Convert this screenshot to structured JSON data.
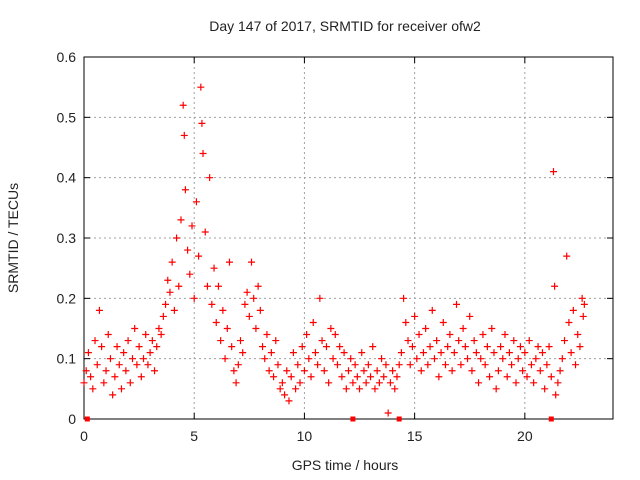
{
  "chart_data": {
    "type": "scatter",
    "title": "Day 147 of 2017, SRMTID for receiver ofw2",
    "xlabel": "GPS time / hours",
    "ylabel": "SRMTID / TECUs",
    "xlim": [
      0,
      24
    ],
    "ylim": [
      0,
      0.6
    ],
    "x_ticks": [
      0,
      5,
      10,
      15,
      20
    ],
    "y_ticks": [
      0,
      0.1,
      0.2,
      0.3,
      0.4,
      0.5,
      0.6
    ],
    "x_tick_labels": [
      "0",
      "5",
      "10",
      "15",
      "20"
    ],
    "y_tick_labels": [
      "0",
      "0.1",
      "0.2",
      "0.3",
      "0.4",
      "0.5",
      "0.6"
    ],
    "grid": true,
    "marker": "+",
    "color": "#ff0000",
    "series": [
      {
        "name": "SRMTID",
        "points": [
          [
            0.0,
            0.06
          ],
          [
            0.1,
            0.08
          ],
          [
            0.2,
            0.11
          ],
          [
            0.3,
            0.07
          ],
          [
            0.4,
            0.05
          ],
          [
            0.5,
            0.13
          ],
          [
            0.6,
            0.09
          ],
          [
            0.7,
            0.18
          ],
          [
            0.8,
            0.12
          ],
          [
            0.9,
            0.06
          ],
          [
            1.0,
            0.08
          ],
          [
            1.1,
            0.14
          ],
          [
            1.2,
            0.1
          ],
          [
            1.3,
            0.04
          ],
          [
            1.4,
            0.07
          ],
          [
            1.5,
            0.12
          ],
          [
            1.6,
            0.09
          ],
          [
            1.7,
            0.05
          ],
          [
            1.8,
            0.11
          ],
          [
            1.9,
            0.08
          ],
          [
            2.0,
            0.13
          ],
          [
            2.1,
            0.06
          ],
          [
            2.2,
            0.1
          ],
          [
            2.3,
            0.15
          ],
          [
            2.4,
            0.09
          ],
          [
            2.5,
            0.12
          ],
          [
            2.6,
            0.07
          ],
          [
            2.7,
            0.1
          ],
          [
            2.8,
            0.14
          ],
          [
            2.9,
            0.09
          ],
          [
            3.0,
            0.11
          ],
          [
            3.1,
            0.13
          ],
          [
            3.2,
            0.08
          ],
          [
            3.3,
            0.12
          ],
          [
            3.4,
            0.15
          ],
          [
            3.5,
            0.14
          ],
          [
            3.6,
            0.17
          ],
          [
            3.7,
            0.19
          ],
          [
            3.8,
            0.23
          ],
          [
            3.9,
            0.21
          ],
          [
            4.0,
            0.26
          ],
          [
            4.1,
            0.18
          ],
          [
            4.2,
            0.3
          ],
          [
            4.3,
            0.22
          ],
          [
            4.4,
            0.33
          ],
          [
            4.5,
            0.52
          ],
          [
            4.55,
            0.47
          ],
          [
            4.6,
            0.38
          ],
          [
            4.7,
            0.28
          ],
          [
            4.8,
            0.24
          ],
          [
            4.9,
            0.32
          ],
          [
            5.0,
            0.2
          ],
          [
            5.1,
            0.36
          ],
          [
            5.2,
            0.27
          ],
          [
            5.3,
            0.55
          ],
          [
            5.35,
            0.49
          ],
          [
            5.4,
            0.44
          ],
          [
            5.5,
            0.31
          ],
          [
            5.6,
            0.22
          ],
          [
            5.7,
            0.4
          ],
          [
            5.8,
            0.19
          ],
          [
            5.9,
            0.25
          ],
          [
            6.0,
            0.16
          ],
          [
            6.1,
            0.22
          ],
          [
            6.2,
            0.13
          ],
          [
            6.3,
            0.18
          ],
          [
            6.4,
            0.1
          ],
          [
            6.5,
            0.15
          ],
          [
            6.6,
            0.26
          ],
          [
            6.7,
            0.12
          ],
          [
            6.8,
            0.08
          ],
          [
            6.9,
            0.06
          ],
          [
            7.0,
            0.09
          ],
          [
            7.1,
            0.13
          ],
          [
            7.2,
            0.11
          ],
          [
            7.3,
            0.19
          ],
          [
            7.4,
            0.21
          ],
          [
            7.5,
            0.17
          ],
          [
            7.6,
            0.26
          ],
          [
            7.7,
            0.2
          ],
          [
            7.8,
            0.15
          ],
          [
            7.9,
            0.22
          ],
          [
            8.0,
            0.18
          ],
          [
            8.1,
            0.12
          ],
          [
            8.2,
            0.1
          ],
          [
            8.3,
            0.14
          ],
          [
            8.4,
            0.08
          ],
          [
            8.5,
            0.11
          ],
          [
            8.6,
            0.07
          ],
          [
            8.7,
            0.13
          ],
          [
            8.8,
            0.09
          ],
          [
            8.9,
            0.05
          ],
          [
            9.0,
            0.06
          ],
          [
            9.1,
            0.04
          ],
          [
            9.2,
            0.08
          ],
          [
            9.3,
            0.03
          ],
          [
            9.4,
            0.07
          ],
          [
            9.5,
            0.11
          ],
          [
            9.6,
            0.05
          ],
          [
            9.7,
            0.09
          ],
          [
            9.8,
            0.06
          ],
          [
            9.9,
            0.12
          ],
          [
            10.0,
            0.08
          ],
          [
            10.1,
            0.14
          ],
          [
            10.2,
            0.1
          ],
          [
            10.3,
            0.07
          ],
          [
            10.4,
            0.16
          ],
          [
            10.5,
            0.11
          ],
          [
            10.6,
            0.09
          ],
          [
            10.7,
            0.2
          ],
          [
            10.8,
            0.13
          ],
          [
            10.9,
            0.08
          ],
          [
            11.0,
            0.12
          ],
          [
            11.1,
            0.06
          ],
          [
            11.2,
            0.15
          ],
          [
            11.3,
            0.1
          ],
          [
            11.4,
            0.14
          ],
          [
            11.5,
            0.09
          ],
          [
            11.6,
            0.12
          ],
          [
            11.7,
            0.07
          ],
          [
            11.8,
            0.11
          ],
          [
            11.9,
            0.05
          ],
          [
            12.0,
            0.08
          ],
          [
            12.1,
            0.1
          ],
          [
            12.2,
            0.06
          ],
          [
            12.3,
            0.09
          ],
          [
            12.4,
            0.07
          ],
          [
            12.5,
            0.05
          ],
          [
            12.6,
            0.11
          ],
          [
            12.7,
            0.08
          ],
          [
            12.8,
            0.06
          ],
          [
            12.9,
            0.09
          ],
          [
            13.0,
            0.07
          ],
          [
            13.1,
            0.12
          ],
          [
            13.2,
            0.05
          ],
          [
            13.3,
            0.08
          ],
          [
            13.4,
            0.06
          ],
          [
            13.5,
            0.1
          ],
          [
            13.6,
            0.07
          ],
          [
            13.7,
            0.09
          ],
          [
            13.8,
            0.01
          ],
          [
            13.9,
            0.06
          ],
          [
            14.0,
            0.08
          ],
          [
            14.1,
            0.05
          ],
          [
            14.2,
            0.07
          ],
          [
            14.3,
            0.09
          ],
          [
            14.4,
            0.11
          ],
          [
            14.5,
            0.2
          ],
          [
            14.6,
            0.16
          ],
          [
            14.7,
            0.13
          ],
          [
            14.8,
            0.09
          ],
          [
            14.9,
            0.12
          ],
          [
            15.0,
            0.17
          ],
          [
            15.1,
            0.1
          ],
          [
            15.2,
            0.14
          ],
          [
            15.3,
            0.08
          ],
          [
            15.4,
            0.11
          ],
          [
            15.5,
            0.15
          ],
          [
            15.6,
            0.09
          ],
          [
            15.7,
            0.12
          ],
          [
            15.8,
            0.18
          ],
          [
            15.9,
            0.1
          ],
          [
            16.0,
            0.13
          ],
          [
            16.1,
            0.07
          ],
          [
            16.2,
            0.11
          ],
          [
            16.3,
            0.16
          ],
          [
            16.4,
            0.09
          ],
          [
            16.5,
            0.12
          ],
          [
            16.6,
            0.14
          ],
          [
            16.7,
            0.08
          ],
          [
            16.8,
            0.11
          ],
          [
            16.9,
            0.19
          ],
          [
            17.0,
            0.13
          ],
          [
            17.1,
            0.09
          ],
          [
            17.2,
            0.15
          ],
          [
            17.3,
            0.12
          ],
          [
            17.4,
            0.1
          ],
          [
            17.5,
            0.17
          ],
          [
            17.6,
            0.08
          ],
          [
            17.7,
            0.13
          ],
          [
            17.8,
            0.11
          ],
          [
            17.9,
            0.06
          ],
          [
            18.0,
            0.1
          ],
          [
            18.1,
            0.14
          ],
          [
            18.2,
            0.09
          ],
          [
            18.3,
            0.12
          ],
          [
            18.4,
            0.07
          ],
          [
            18.5,
            0.15
          ],
          [
            18.6,
            0.11
          ],
          [
            18.7,
            0.05
          ],
          [
            18.8,
            0.08
          ],
          [
            18.9,
            0.12
          ],
          [
            19.0,
            0.1
          ],
          [
            19.1,
            0.14
          ],
          [
            19.2,
            0.07
          ],
          [
            19.3,
            0.11
          ],
          [
            19.4,
            0.09
          ],
          [
            19.5,
            0.13
          ],
          [
            19.6,
            0.06
          ],
          [
            19.7,
            0.1
          ],
          [
            19.8,
            0.12
          ],
          [
            19.9,
            0.08
          ],
          [
            20.0,
            0.11
          ],
          [
            20.1,
            0.07
          ],
          [
            20.2,
            0.13
          ],
          [
            20.3,
            0.09
          ],
          [
            20.4,
            0.06
          ],
          [
            20.5,
            0.1
          ],
          [
            20.6,
            0.12
          ],
          [
            20.7,
            0.08
          ],
          [
            20.8,
            0.11
          ],
          [
            20.9,
            0.05
          ],
          [
            21.0,
            0.09
          ],
          [
            21.1,
            0.12
          ],
          [
            21.2,
            0.07
          ],
          [
            21.3,
            0.41
          ],
          [
            21.35,
            0.22
          ],
          [
            21.4,
            0.04
          ],
          [
            21.5,
            0.06
          ],
          [
            21.6,
            0.08
          ],
          [
            21.7,
            0.1
          ],
          [
            21.8,
            0.13
          ],
          [
            21.9,
            0.27
          ],
          [
            22.0,
            0.16
          ],
          [
            22.1,
            0.11
          ],
          [
            22.2,
            0.18
          ],
          [
            22.3,
            0.09
          ],
          [
            22.4,
            0.14
          ],
          [
            22.5,
            0.12
          ],
          [
            22.6,
            0.2
          ],
          [
            22.65,
            0.17
          ],
          [
            22.7,
            0.19
          ]
        ]
      }
    ]
  }
}
